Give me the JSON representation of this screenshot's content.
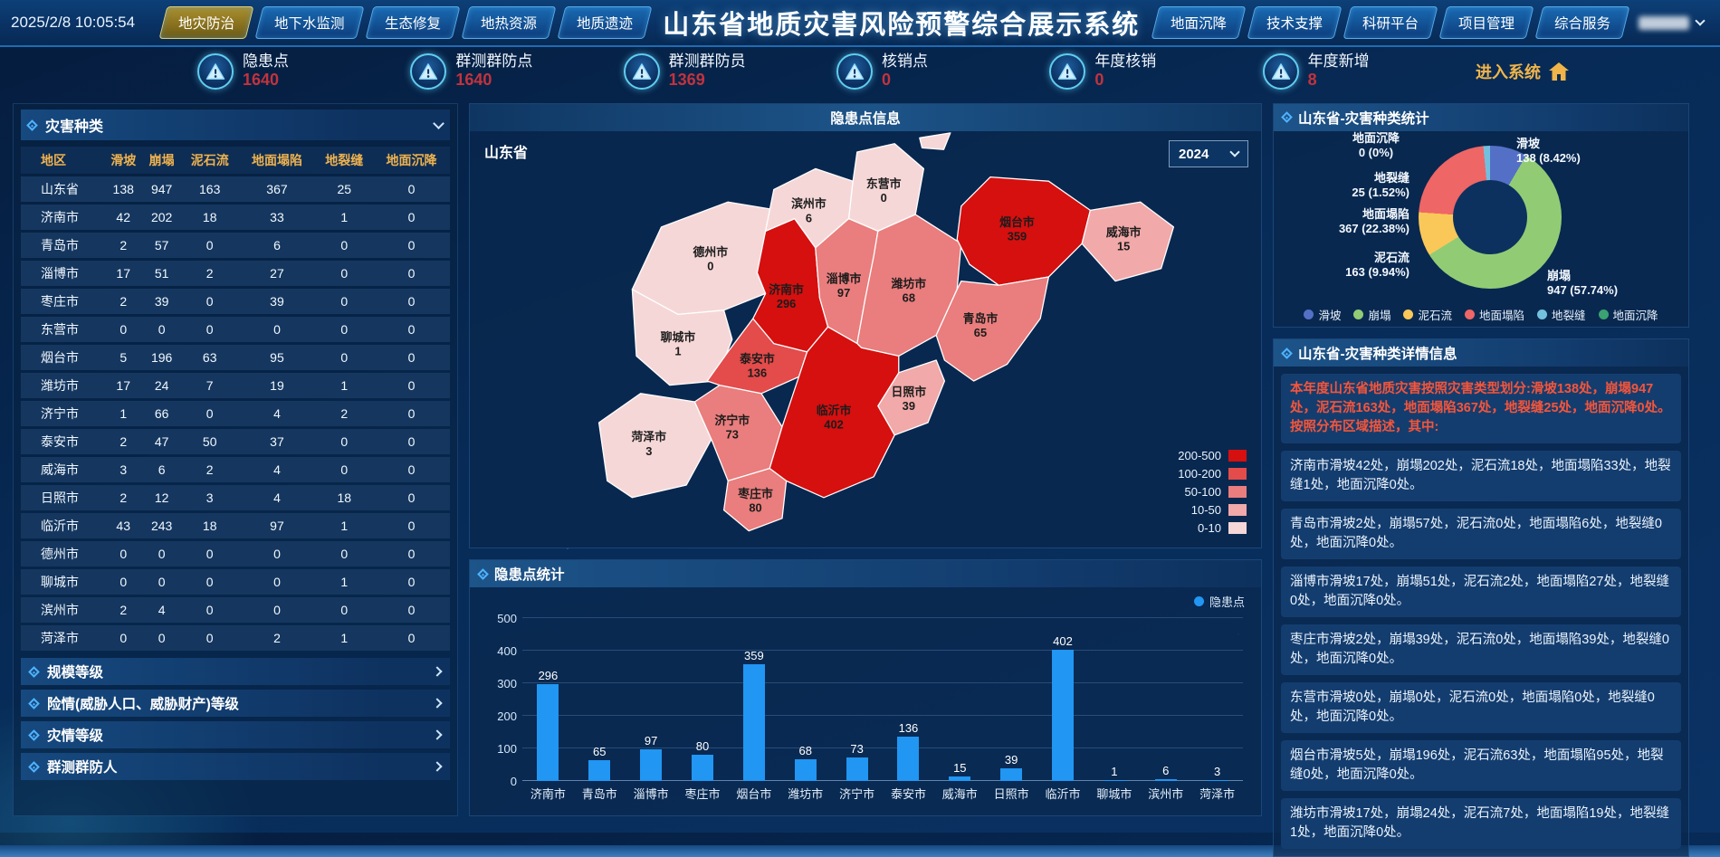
{
  "header": {
    "timestamp": "2025/2/8 10:05:54",
    "title": "山东省地质灾害风险预警综合展示系统",
    "left_tabs": [
      {
        "label": "地灾防治",
        "active": true
      },
      {
        "label": "地下水监测",
        "active": false
      },
      {
        "label": "生态修复",
        "active": false
      },
      {
        "label": "地热资源",
        "active": false
      },
      {
        "label": "地质遗迹",
        "active": false
      }
    ],
    "right_tabs": [
      {
        "label": "地面沉降",
        "active": false
      },
      {
        "label": "技术支撑",
        "active": false
      },
      {
        "label": "科研平台",
        "active": false
      },
      {
        "label": "项目管理",
        "active": false
      },
      {
        "label": "综合服务",
        "active": false
      }
    ]
  },
  "stats": {
    "items": [
      {
        "label": "隐患点",
        "value": "1640"
      },
      {
        "label": "群测群防点",
        "value": "1640"
      },
      {
        "label": "群测群防员",
        "value": "1369"
      },
      {
        "label": "核销点",
        "value": "0"
      },
      {
        "label": "年度核销",
        "value": "0"
      },
      {
        "label": "年度新增",
        "value": "8"
      }
    ],
    "enter_label": "进入系统"
  },
  "left_panel": {
    "disaster_types": {
      "title": "灾害种类",
      "columns": [
        "地区",
        "滑坡",
        "崩塌",
        "泥石流",
        "地面塌陷",
        "地裂缝",
        "地面沉降"
      ],
      "rows": [
        [
          "山东省",
          138,
          947,
          163,
          367,
          25,
          0
        ],
        [
          "济南市",
          42,
          202,
          18,
          33,
          1,
          0
        ],
        [
          "青岛市",
          2,
          57,
          0,
          6,
          0,
          0
        ],
        [
          "淄博市",
          17,
          51,
          2,
          27,
          0,
          0
        ],
        [
          "枣庄市",
          2,
          39,
          0,
          39,
          0,
          0
        ],
        [
          "东营市",
          0,
          0,
          0,
          0,
          0,
          0
        ],
        [
          "烟台市",
          5,
          196,
          63,
          95,
          0,
          0
        ],
        [
          "潍坊市",
          17,
          24,
          7,
          19,
          1,
          0
        ],
        [
          "济宁市",
          1,
          66,
          0,
          4,
          2,
          0
        ],
        [
          "泰安市",
          2,
          47,
          50,
          37,
          0,
          0
        ],
        [
          "威海市",
          3,
          6,
          2,
          4,
          0,
          0
        ],
        [
          "日照市",
          2,
          12,
          3,
          4,
          18,
          0
        ],
        [
          "临沂市",
          43,
          243,
          18,
          97,
          1,
          0
        ],
        [
          "德州市",
          0,
          0,
          0,
          0,
          0,
          0
        ],
        [
          "聊城市",
          0,
          0,
          0,
          0,
          1,
          0
        ],
        [
          "滨州市",
          2,
          4,
          0,
          0,
          0,
          0
        ],
        [
          "菏泽市",
          0,
          0,
          0,
          2,
          1,
          0
        ]
      ]
    },
    "sections": [
      "规模等级",
      "险情(威胁人口、威胁财产)等级",
      "灾情等级",
      "群测群防人"
    ]
  },
  "map_panel": {
    "title": "隐患点信息",
    "region_label": "山东省",
    "year": "2024",
    "legend": [
      {
        "range": "200-500",
        "color": "#d60f0f"
      },
      {
        "range": "100-200",
        "color": "#e44b4b"
      },
      {
        "range": "50-100",
        "color": "#ea7d7d"
      },
      {
        "range": "10-50",
        "color": "#f1a9a9"
      },
      {
        "range": "0-10",
        "color": "#f6d7d7"
      }
    ],
    "cities": [
      {
        "name": "济南市",
        "value": 296
      },
      {
        "name": "青岛市",
        "value": 65
      },
      {
        "name": "淄博市",
        "value": 97
      },
      {
        "name": "枣庄市",
        "value": 80
      },
      {
        "name": "东营市",
        "value": 0
      },
      {
        "name": "烟台市",
        "value": 359
      },
      {
        "name": "潍坊市",
        "value": 68
      },
      {
        "name": "济宁市",
        "value": 73
      },
      {
        "name": "泰安市",
        "value": 136
      },
      {
        "name": "威海市",
        "value": 15
      },
      {
        "name": "日照市",
        "value": 39
      },
      {
        "name": "临沂市",
        "value": 402
      },
      {
        "name": "德州市",
        "value": 0
      },
      {
        "name": "聊城市",
        "value": 1
      },
      {
        "name": "滨州市",
        "value": 6
      },
      {
        "name": "菏泽市",
        "value": 3
      }
    ]
  },
  "bar_panel": {
    "title": "隐患点统计",
    "legend_label": "隐患点"
  },
  "donut_panel": {
    "title": "山东省-灾害种类统计"
  },
  "detail_panel": {
    "title": "山东省-灾害种类详情信息",
    "intro": "本年度山东省地质灾害按照灾害类型划分:滑坡138处，崩塌947处，泥石流163处，地面塌陷367处，地裂缝25处，地面沉降0处。按照分布区域描述，其中:",
    "items": [
      "济南市滑坡42处，崩塌202处，泥石流18处，地面塌陷33处，地裂缝1处，地面沉降0处。",
      "青岛市滑坡2处，崩塌57处，泥石流0处，地面塌陷6处，地裂缝0处，地面沉降0处。",
      "淄博市滑坡17处，崩塌51处，泥石流2处，地面塌陷27处，地裂缝0处，地面沉降0处。",
      "枣庄市滑坡2处，崩塌39处，泥石流0处，地面塌陷39处，地裂缝0处，地面沉降0处。",
      "东营市滑坡0处，崩塌0处，泥石流0处，地面塌陷0处，地裂缝0处，地面沉降0处。",
      "烟台市滑坡5处，崩塌196处，泥石流63处，地面塌陷95处，地裂缝0处，地面沉降0处。",
      "潍坊市滑坡17处，崩塌24处，泥石流7处，地面塌陷19处，地裂缝1处，地面沉降0处。"
    ]
  },
  "chart_data": [
    {
      "type": "bar",
      "title": "隐患点统计",
      "series_name": "隐患点",
      "categories": [
        "济南市",
        "青岛市",
        "淄博市",
        "枣庄市",
        "烟台市",
        "潍坊市",
        "济宁市",
        "泰安市",
        "威海市",
        "日照市",
        "临沂市",
        "聊城市",
        "滨州市",
        "菏泽市"
      ],
      "values": [
        296,
        65,
        97,
        80,
        359,
        68,
        73,
        136,
        15,
        39,
        402,
        1,
        6,
        3
      ],
      "ylim": [
        0,
        500
      ],
      "yticks": [
        0,
        100,
        200,
        300,
        400,
        500
      ],
      "bar_color": "#2196f3",
      "legend_position": "top-right",
      "grid": true
    },
    {
      "type": "pie",
      "donut": true,
      "title": "山东省-灾害种类统计",
      "slices": [
        {
          "name": "滑坡",
          "value": 138,
          "pct": "8.42%",
          "color": "#5470c6"
        },
        {
          "name": "崩塌",
          "value": 947,
          "pct": "57.74%",
          "color": "#91cc75"
        },
        {
          "name": "泥石流",
          "value": 163,
          "pct": "9.94%",
          "color": "#fac858"
        },
        {
          "name": "地面塌陷",
          "value": 367,
          "pct": "22.38%",
          "color": "#ee6666"
        },
        {
          "name": "地裂缝",
          "value": 25,
          "pct": "1.52%",
          "color": "#73c0de"
        },
        {
          "name": "地面沉降",
          "value": 0,
          "pct": "0%",
          "color": "#3ba272"
        }
      ],
      "legend_position": "bottom"
    }
  ]
}
